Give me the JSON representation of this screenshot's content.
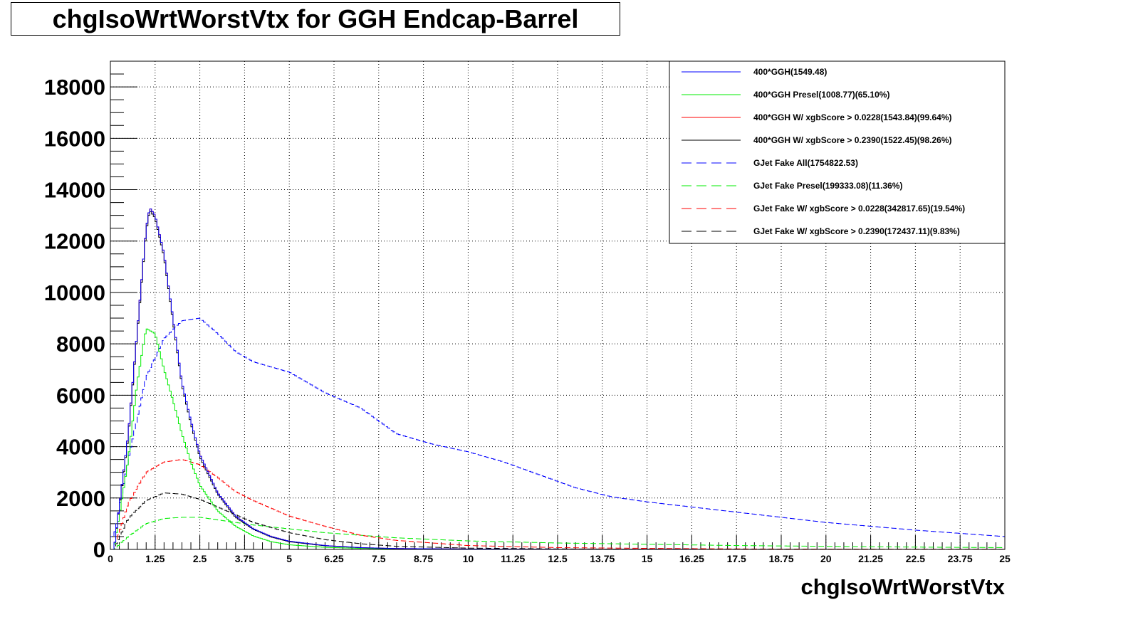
{
  "chart_data": {
    "type": "line",
    "title": "chgIsoWrtWorstVtx for GGH Endcap-Barrel",
    "xlabel": "chgIsoWrtWorstVtx",
    "ylabel": "",
    "xlim": [
      0,
      25
    ],
    "ylim": [
      0,
      19000
    ],
    "grid": true,
    "legend_position": "top-right",
    "x_ticks": [
      "0",
      "1.25",
      "2.5",
      "3.75",
      "5",
      "6.25",
      "7.5",
      "8.75",
      "10",
      "11.25",
      "12.5",
      "13.75",
      "15",
      "16.25",
      "17.5",
      "18.75",
      "20",
      "21.25",
      "22.5",
      "23.75",
      "25"
    ],
    "y_ticks": [
      "0",
      "2000",
      "4000",
      "6000",
      "8000",
      "10000",
      "12000",
      "14000",
      "16000",
      "18000"
    ],
    "series": [
      {
        "name": "400*GGH(1549.48)",
        "color": "#0000ff",
        "style": "solid",
        "x": [
          0.1,
          0.5,
          0.75,
          1.0,
          1.1,
          1.25,
          1.5,
          1.75,
          2.0,
          2.25,
          2.5,
          3.0,
          3.5,
          4.0,
          4.5,
          5.0,
          6.0,
          7.0,
          8.0,
          10.0,
          12.5,
          15.0,
          20.0,
          25.0
        ],
        "values": [
          0,
          4500,
          8500,
          12500,
          13300,
          13000,
          11500,
          9000,
          6500,
          5000,
          3700,
          2200,
          1300,
          800,
          500,
          320,
          150,
          70,
          35,
          15,
          5,
          2,
          1,
          0
        ]
      },
      {
        "name": "400*GGH Presel(1008.77)(65.10%)",
        "color": "#00ee00",
        "style": "solid",
        "x": [
          0.1,
          0.5,
          0.75,
          1.0,
          1.25,
          1.5,
          1.75,
          2.0,
          2.25,
          2.5,
          3.0,
          3.5,
          4.0,
          4.5,
          5.0,
          6.0,
          7.0,
          8.0,
          10.0,
          12.5,
          15.0,
          20.0,
          25.0
        ],
        "values": [
          0,
          3500,
          6500,
          8600,
          8400,
          7000,
          5800,
          4500,
          3400,
          2500,
          1500,
          900,
          520,
          300,
          180,
          80,
          40,
          20,
          8,
          3,
          1,
          0,
          0
        ]
      },
      {
        "name": "400*GGH W/ xgbScore > 0.0228(1543.84)(99.64%)",
        "color": "#ff0000",
        "style": "solid",
        "x": [
          0.1,
          0.5,
          0.75,
          1.0,
          1.1,
          1.25,
          1.5,
          1.75,
          2.0,
          2.25,
          2.5,
          3.0,
          3.5,
          4.0,
          4.5,
          5.0,
          6.0,
          7.0,
          8.0,
          10.0,
          12.5,
          15.0,
          20.0,
          25.0
        ],
        "values": [
          0,
          4500,
          8500,
          12500,
          13300,
          13000,
          11500,
          9000,
          6500,
          5000,
          3700,
          2200,
          1300,
          800,
          500,
          320,
          150,
          70,
          35,
          15,
          5,
          2,
          1,
          0
        ]
      },
      {
        "name": "400*GGH W/ xgbScore > 0.2390(1522.45)(98.26%)",
        "color": "#000000",
        "style": "solid",
        "x": [
          0.1,
          0.5,
          0.75,
          1.0,
          1.1,
          1.25,
          1.5,
          1.75,
          2.0,
          2.25,
          2.5,
          3.0,
          3.5,
          4.0,
          4.5,
          5.0,
          6.0,
          7.0,
          8.0,
          10.0,
          12.5,
          15.0,
          20.0,
          25.0
        ],
        "values": [
          0,
          4400,
          8400,
          12400,
          13200,
          12900,
          11400,
          8900,
          6400,
          4900,
          3600,
          2150,
          1250,
          780,
          480,
          300,
          140,
          65,
          30,
          12,
          4,
          2,
          1,
          0
        ]
      },
      {
        "name": "GJet Fake All(1754822.53)",
        "color": "#0000ff",
        "style": "dashed",
        "x": [
          0.1,
          0.5,
          1.0,
          1.5,
          2.0,
          2.5,
          3.0,
          3.5,
          4.0,
          5.0,
          6.0,
          7.0,
          8.0,
          9.0,
          10.0,
          11.0,
          12.0,
          13.0,
          14.0,
          15.0,
          17.5,
          20.0,
          22.5,
          25.0
        ],
        "values": [
          500,
          3500,
          6700,
          8200,
          8900,
          9000,
          8400,
          7700,
          7300,
          6900,
          6100,
          5500,
          4500,
          4100,
          3800,
          3400,
          2900,
          2400,
          2050,
          1850,
          1450,
          1050,
          750,
          500
        ]
      },
      {
        "name": "GJet Fake Presel(199333.08)(11.36%)",
        "color": "#00ee00",
        "style": "dashed",
        "x": [
          0.1,
          0.5,
          1.0,
          1.5,
          2.0,
          2.5,
          3.0,
          3.5,
          4.0,
          5.0,
          6.0,
          7.0,
          8.0,
          10.0,
          12.5,
          15.0,
          17.5,
          20.0,
          22.5,
          25.0
        ],
        "values": [
          0,
          500,
          1000,
          1200,
          1250,
          1250,
          1150,
          1050,
          950,
          800,
          650,
          550,
          450,
          330,
          250,
          200,
          150,
          120,
          90,
          70
        ]
      },
      {
        "name": "GJet Fake W/ xgbScore > 0.0228(342817.65)(19.54%)",
        "color": "#ff0000",
        "style": "dashed",
        "x": [
          0.1,
          0.5,
          1.0,
          1.5,
          2.0,
          2.5,
          3.0,
          3.5,
          4.0,
          5.0,
          6.0,
          7.0,
          8.0,
          10.0,
          12.5,
          15.0,
          17.5,
          20.0,
          25.0
        ],
        "values": [
          0,
          1800,
          3000,
          3400,
          3500,
          3300,
          2800,
          2250,
          1900,
          1300,
          900,
          550,
          350,
          150,
          70,
          40,
          20,
          10,
          5
        ]
      },
      {
        "name": "GJet Fake W/ xgbScore > 0.2390(172437.11)(9.83%)",
        "color": "#000000",
        "style": "dashed",
        "x": [
          0.1,
          0.5,
          1.0,
          1.5,
          2.0,
          2.5,
          3.0,
          3.5,
          4.0,
          5.0,
          6.0,
          7.0,
          8.0,
          10.0,
          12.5,
          15.0,
          20.0,
          25.0
        ],
        "values": [
          0,
          1200,
          1900,
          2200,
          2150,
          1950,
          1650,
          1350,
          1050,
          650,
          380,
          220,
          120,
          50,
          20,
          10,
          4,
          2
        ]
      }
    ]
  }
}
